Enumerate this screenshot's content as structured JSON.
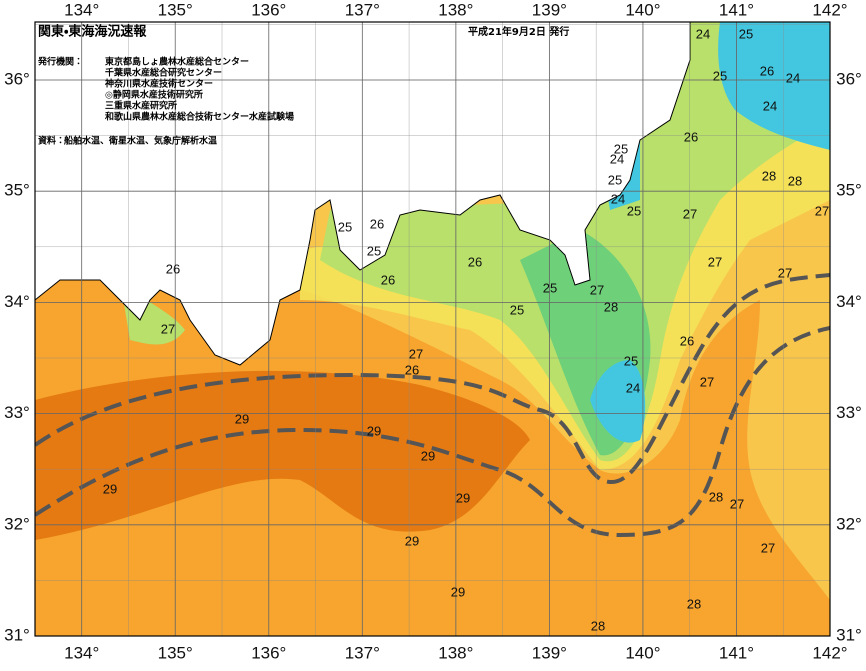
{
  "header": {
    "title": "関東・東海海況速報",
    "issued": "平成21年9月2日 発行"
  },
  "issuers": {
    "label": "発行機関：",
    "items": [
      "東京都島しょ農林水産総合センター",
      "千葉県水産総合研究センター",
      "神奈川県水産技術センター",
      "◎静岡県水産技術研究所",
      "三重県水産研究所",
      "和歌山県農林水産総合技術センター水産試験場"
    ]
  },
  "source": {
    "label": "資料：",
    "text": "船舶水温、衛星水温、気象庁解析水温"
  },
  "map": {
    "lon_ticks": [
      {
        "value": 134,
        "label": "134°"
      },
      {
        "value": 135,
        "label": "135°"
      },
      {
        "value": 136,
        "label": "136°"
      },
      {
        "value": 137,
        "label": "137°"
      },
      {
        "value": 138,
        "label": "138°"
      },
      {
        "value": 139,
        "label": "139°"
      },
      {
        "value": 140,
        "label": "140°"
      },
      {
        "value": 141,
        "label": "141°"
      },
      {
        "value": 142,
        "label": "142°"
      }
    ],
    "lat_ticks": [
      {
        "value": 31,
        "label": "31°"
      },
      {
        "value": 32,
        "label": "32°"
      },
      {
        "value": 33,
        "label": "33°"
      },
      {
        "value": 34,
        "label": "34°"
      },
      {
        "value": 35,
        "label": "35°"
      },
      {
        "value": 36,
        "label": "36°"
      }
    ],
    "contour_labels": [
      "24",
      "25",
      "25",
      "26",
      "24",
      "24",
      "26",
      "25",
      "24",
      "25",
      "28",
      "28",
      "24",
      "25",
      "27",
      "27",
      "25",
      "26",
      "25",
      "26",
      "27",
      "26",
      "27",
      "26",
      "25",
      "27",
      "28",
      "25",
      "27",
      "26",
      "27",
      "26",
      "25",
      "24",
      "27",
      "29",
      "29",
      "29",
      "29",
      "29",
      "28",
      "27",
      "29",
      "27",
      "29",
      "28",
      "28"
    ]
  }
}
